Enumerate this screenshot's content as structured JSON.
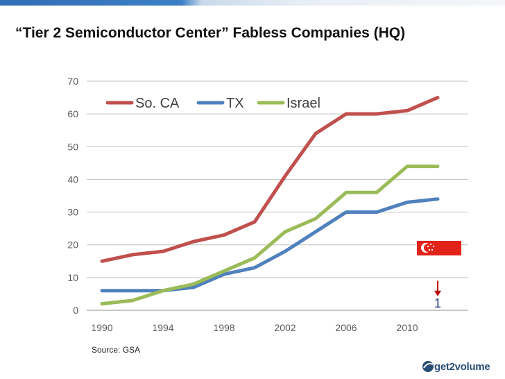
{
  "slide": {
    "title": "“Tier 2 Semiconductor Center” Fabless Companies (HQ)",
    "source": "Source: GSA",
    "logo_text": "get2volume"
  },
  "chart_data": {
    "type": "line",
    "title": "",
    "xlabel": "",
    "ylabel": "",
    "x": [
      1990,
      1992,
      1994,
      1996,
      1998,
      2000,
      2002,
      2004,
      2006,
      2008,
      2010,
      2012
    ],
    "xticks": [
      1990,
      1994,
      1998,
      2002,
      2006,
      2010
    ],
    "xlim": [
      1989,
      2014
    ],
    "ylim": [
      0,
      70
    ],
    "yticks": [
      0,
      10,
      20,
      30,
      40,
      50,
      60,
      70
    ],
    "grid": true,
    "legend_position": "top",
    "series": [
      {
        "name": "So. CA",
        "color": "#c0504d",
        "values": [
          15,
          17,
          18,
          21,
          23,
          27,
          41,
          54,
          60,
          60,
          61,
          65
        ]
      },
      {
        "name": "TX",
        "color": "#4f81bd",
        "values": [
          6,
          6,
          6,
          7,
          11,
          13,
          18,
          24,
          30,
          30,
          33,
          34
        ]
      },
      {
        "name": "Israel",
        "color": "#9bbb59",
        "values": [
          2,
          3,
          6,
          8,
          12,
          16,
          24,
          28,
          36,
          36,
          44,
          44
        ]
      }
    ],
    "annotation": {
      "label": "1",
      "flag": "singapore-flag",
      "x": 2012,
      "arrow_color": "#c00000",
      "label_color": "#1f3b7a"
    }
  }
}
